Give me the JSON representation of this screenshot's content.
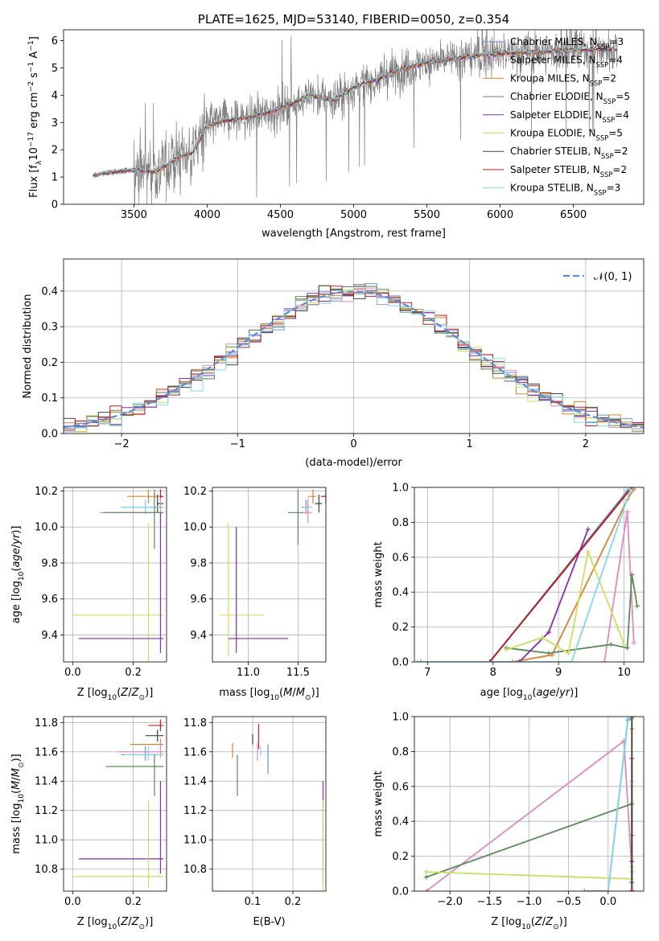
{
  "chart_data": [
    {
      "id": "spectrum",
      "type": "line",
      "title": "PLATE=1625, MJD=53140, FIBERID=0050, z=0.354",
      "xlabel": "wavelength [Angstrom, rest frame]",
      "ylabel": "Flux [f_λ 10^-17 erg cm^-2 s^-1 A^-1]",
      "xlim": [
        3020,
        6980
      ],
      "ylim": [
        0,
        6.4
      ],
      "xticks": [
        3500,
        4000,
        4500,
        5000,
        5500,
        6000,
        6500
      ],
      "yticks": [
        0,
        1,
        2,
        3,
        4,
        5,
        6
      ],
      "grid": false,
      "legend_placement": "top-right",
      "data_range": [
        3220,
        6800
      ],
      "continuum": {
        "x": [
          3220,
          3300,
          3400,
          3500,
          3650,
          3800,
          3900,
          4000,
          4100,
          4300,
          4500,
          4700,
          4861,
          5000,
          5175,
          5300,
          5500,
          5700,
          5900,
          6100,
          6300,
          6500,
          6800
        ],
        "y": [
          1.05,
          1.15,
          1.2,
          1.25,
          1.2,
          1.7,
          1.9,
          2.85,
          3.05,
          3.2,
          3.5,
          4.0,
          3.8,
          4.3,
          4.6,
          4.9,
          5.2,
          5.35,
          5.5,
          5.55,
          5.6,
          5.65,
          5.7
        ]
      },
      "series": [
        {
          "label": "Chabrier MILES, N",
          "sub": "SSP",
          "n": "=3",
          "color": "#6b8fd6"
        },
        {
          "label": "Salpeter MILES, N",
          "sub": "SSP",
          "n": "=4",
          "color": "#e08ac0"
        },
        {
          "label": "Kroupa MILES, N",
          "sub": "SSP",
          "n": "=2",
          "color": "#e08030"
        },
        {
          "label": "Chabrier ELODIE, N",
          "sub": "SSP",
          "n": "=5",
          "color": "#5a8a5a"
        },
        {
          "label": "Salpeter ELODIE, N",
          "sub": "SSP",
          "n": "=4",
          "color": "#8a2ab0"
        },
        {
          "label": "Kroupa ELODIE, N",
          "sub": "SSP",
          "n": "=5",
          "color": "#c8e060"
        },
        {
          "label": "Chabrier STELIB, N",
          "sub": "SSP",
          "n": "=2",
          "color": "#404040"
        },
        {
          "label": "Salpeter STELIB, N",
          "sub": "SSP",
          "n": "=2",
          "color": "#c02020"
        },
        {
          "label": "Kroupa STELIB, N",
          "sub": "SSP",
          "n": "=3",
          "color": "#80d8e8"
        }
      ],
      "data_color": "#808080"
    },
    {
      "id": "residuals",
      "type": "line",
      "xlabel": "(data-model)/error",
      "ylabel": "Normed distribution",
      "xlim": [
        -2.5,
        2.5
      ],
      "ylim": [
        0,
        0.49
      ],
      "xticks": [
        -2,
        -1,
        0,
        1,
        2
      ],
      "yticks": [
        0.0,
        0.1,
        0.2,
        0.3,
        0.4
      ],
      "grid": true,
      "legend": "𝒩(0, 1)",
      "legend_placement": "top-right",
      "gaussian_color": "#5f8bd6",
      "bin_width": 0.1,
      "series_colors": [
        "#6b8fd6",
        "#e08ac0",
        "#e08030",
        "#5a8a5a",
        "#8a2ab0",
        "#c8e060",
        "#404040",
        "#c02020",
        "#80d8e8"
      ]
    },
    {
      "id": "age-vs-z",
      "type": "scatter",
      "xlabel": "Z [log10(Z/Z⊙)]",
      "ylabel": "age [log10(age/yr)]",
      "xlim": [
        -0.03,
        0.31
      ],
      "ylim": [
        9.25,
        10.22
      ],
      "xticks": [
        0.0,
        0.2
      ],
      "yticks": [
        9.4,
        9.6,
        9.8,
        10.0,
        10.2
      ],
      "grid": true,
      "points": [
        {
          "x": 0.25,
          "y": 10.17,
          "xerr": [
            0.07,
            0.05
          ],
          "yerr": [
            0.04,
            0.04
          ],
          "color": "#e08030"
        },
        {
          "x": 0.29,
          "y": 10.17,
          "xerr": [
            0.0,
            0.01
          ],
          "yerr": [
            0.03,
            0.04
          ],
          "color": "#c02020"
        },
        {
          "x": 0.28,
          "y": 10.13,
          "xerr": [
            0.0,
            0.02
          ],
          "yerr": [
            0.05,
            0.05
          ],
          "color": "#404040"
        },
        {
          "x": 0.24,
          "y": 10.11,
          "xerr": [
            0.08,
            0.06
          ],
          "yerr": [
            0.04,
            0.04
          ],
          "color": "#6b8fd6"
        },
        {
          "x": 0.24,
          "y": 10.11,
          "xerr": [
            0.08,
            0.06
          ],
          "yerr": [
            0.04,
            0.04
          ],
          "color": "#80d8e8"
        },
        {
          "x": 0.29,
          "y": 10.08,
          "xerr": [
            0.2,
            0.01
          ],
          "yerr": [
            0.06,
            0.08
          ],
          "color": "#e08ac0"
        },
        {
          "x": 0.27,
          "y": 10.08,
          "xerr": [
            0.17,
            0.03
          ],
          "yerr": [
            0.2,
            0.13
          ],
          "color": "#5a8a5a"
        },
        {
          "x": 0.25,
          "y": 9.51,
          "xerr": [
            0.25,
            0.05
          ],
          "yerr": [
            0.26,
            0.51
          ],
          "color": "#c8e060"
        },
        {
          "x": 0.29,
          "y": 9.38,
          "xerr": [
            0.27,
            0.01
          ],
          "yerr": [
            0.08,
            0.7
          ],
          "color": "#8a2ab0"
        }
      ]
    },
    {
      "id": "age-vs-mass",
      "type": "scatter",
      "xlabel": "mass [log10(M/M⊙)]",
      "ylabel": "",
      "xlim": [
        10.64,
        11.78
      ],
      "ylim": [
        9.25,
        10.22
      ],
      "xticks": [
        11.0,
        11.5
      ],
      "yticks": [
        9.4,
        9.6,
        9.8,
        10.0,
        10.2
      ],
      "grid": true,
      "points": [
        {
          "x": 11.78,
          "y": 10.17,
          "xerr": [
            0.05,
            0.0
          ],
          "yerr": [
            0.04,
            0.04
          ],
          "color": "#c02020"
        },
        {
          "x": 11.65,
          "y": 10.17,
          "xerr": [
            0.05,
            0.03
          ],
          "yerr": [
            0.04,
            0.04
          ],
          "color": "#e08030"
        },
        {
          "x": 11.71,
          "y": 10.13,
          "xerr": [
            0.04,
            0.03
          ],
          "yerr": [
            0.05,
            0.05
          ],
          "color": "#404040"
        },
        {
          "x": 11.58,
          "y": 10.11,
          "xerr": [
            0.04,
            0.04
          ],
          "yerr": [
            0.04,
            0.04
          ],
          "color": "#6b8fd6"
        },
        {
          "x": 11.6,
          "y": 10.11,
          "xerr": [
            0.04,
            0.04
          ],
          "yerr": [
            0.04,
            0.04
          ],
          "color": "#80d8e8"
        },
        {
          "x": 11.6,
          "y": 10.08,
          "xerr": [
            0.06,
            0.04
          ],
          "yerr": [
            0.06,
            0.08
          ],
          "color": "#e08ac0"
        },
        {
          "x": 11.5,
          "y": 10.08,
          "xerr": [
            0.1,
            0.05
          ],
          "yerr": [
            0.18,
            0.13
          ],
          "color": "#5a8a5a"
        },
        {
          "x": 10.8,
          "y": 9.51,
          "xerr": [
            0.09,
            0.36
          ],
          "yerr": [
            0.23,
            0.51
          ],
          "color": "#c8e060"
        },
        {
          "x": 10.88,
          "y": 9.38,
          "xerr": [
            0.08,
            0.52
          ],
          "yerr": [
            0.08,
            0.62
          ],
          "color": "#8a2ab0"
        }
      ]
    },
    {
      "id": "mass-weight-vs-age",
      "type": "line",
      "xlabel": "age [log10(age/yr)]",
      "ylabel": "mass weight",
      "xlim": [
        6.8,
        10.3
      ],
      "ylim": [
        0,
        1.0
      ],
      "xticks": [
        7,
        8,
        9,
        10
      ],
      "yticks": [
        0.0,
        0.2,
        0.4,
        0.6,
        0.8,
        1.0
      ],
      "grid": true,
      "series": [
        {
          "color": "#6b8fd6",
          "x": [
            6.9,
            7.95,
            10.05,
            10.1
          ],
          "y": [
            0.0,
            0.0,
            0.98,
            0.99
          ]
        },
        {
          "color": "#e08ac0",
          "x": [
            9.7,
            10.05,
            10.15
          ],
          "y": [
            0.0,
            0.86,
            0.11
          ]
        },
        {
          "color": "#e08030",
          "x": [
            7.95,
            8.3,
            8.9,
            10.05,
            10.15
          ],
          "y": [
            0.0,
            0.0,
            0.04,
            0.93,
            0.99
          ]
        },
        {
          "color": "#5a8a5a",
          "x": [
            8.2,
            8.85,
            9.8,
            10.05,
            10.12,
            10.2
          ],
          "y": [
            0.08,
            0.05,
            0.1,
            0.08,
            0.5,
            0.32
          ]
        },
        {
          "color": "#8a2ab0",
          "x": [
            7.95,
            8.4,
            8.85,
            9.45
          ],
          "y": [
            0.0,
            0.0,
            0.17,
            0.76
          ]
        },
        {
          "color": "#c8e060",
          "x": [
            8.2,
            8.75,
            9.15,
            9.45,
            9.9,
            10.0
          ],
          "y": [
            0.07,
            0.14,
            0.05,
            0.63,
            0.2,
            0.1
          ]
        },
        {
          "color": "#404040",
          "x": [
            7.95,
            10.12
          ],
          "y": [
            0.0,
            1.0
          ]
        },
        {
          "color": "#c02020",
          "x": [
            7.95,
            10.12
          ],
          "y": [
            0.0,
            1.0
          ]
        },
        {
          "color": "#80d8e8",
          "x": [
            6.85,
            9.2,
            10.1
          ],
          "y": [
            0.0,
            0.0,
            0.99
          ]
        }
      ]
    },
    {
      "id": "mass-vs-z",
      "type": "scatter",
      "xlabel": "Z [log10(Z/Z⊙)]",
      "ylabel": "mass [log10(M/M⊙)]",
      "xlim": [
        -0.03,
        0.31
      ],
      "ylim": [
        10.65,
        11.84
      ],
      "xticks": [
        0.0,
        0.2
      ],
      "yticks": [
        10.8,
        11.0,
        11.2,
        11.4,
        11.6,
        11.8
      ],
      "grid": true,
      "points": [
        {
          "x": 0.29,
          "y": 11.78,
          "xerr": [
            0.04,
            0.01
          ],
          "yerr": [
            0.04,
            0.04
          ],
          "color": "#c02020"
        },
        {
          "x": 0.28,
          "y": 11.71,
          "xerr": [
            0.04,
            0.02
          ],
          "yerr": [
            0.04,
            0.04
          ],
          "color": "#404040"
        },
        {
          "x": 0.29,
          "y": 11.65,
          "xerr": [
            0.1,
            0.01
          ],
          "yerr": [
            0.04,
            0.04
          ],
          "color": "#e08030"
        },
        {
          "x": 0.29,
          "y": 11.6,
          "xerr": [
            0.14,
            0.01
          ],
          "yerr": [
            0.04,
            0.06
          ],
          "color": "#e08ac0"
        },
        {
          "x": 0.24,
          "y": 11.58,
          "xerr": [
            0.08,
            0.06
          ],
          "yerr": [
            0.04,
            0.06
          ],
          "color": "#6b8fd6"
        },
        {
          "x": 0.25,
          "y": 11.58,
          "xerr": [
            0.08,
            0.05
          ],
          "yerr": [
            0.04,
            0.06
          ],
          "color": "#80d8e8"
        },
        {
          "x": 0.27,
          "y": 11.5,
          "xerr": [
            0.16,
            0.03
          ],
          "yerr": [
            0.2,
            0.08
          ],
          "color": "#5a8a5a"
        },
        {
          "x": 0.29,
          "y": 10.87,
          "xerr": [
            0.27,
            0.01
          ],
          "yerr": [
            0.1,
            0.53
          ],
          "color": "#8a2ab0"
        },
        {
          "x": 0.25,
          "y": 10.75,
          "xerr": [
            0.25,
            0.05
          ],
          "yerr": [
            0.08,
            0.52
          ],
          "color": "#c8e060"
        }
      ]
    },
    {
      "id": "mass-vs-ebv",
      "type": "scatter",
      "xlabel": "E(B-V)",
      "ylabel": "",
      "xlim": [
        0.0,
        0.282
      ],
      "ylim": [
        10.65,
        11.84
      ],
      "xticks": [
        0.1,
        0.2
      ],
      "yticks": [
        10.8,
        11.0,
        11.2,
        11.4,
        11.6,
        11.8
      ],
      "grid": true,
      "points": [
        {
          "x": 0.115,
          "y": 11.7,
          "xerr": [
            0.0,
            0.0
          ],
          "yerr": [
            0.08,
            0.09
          ],
          "color": "#c02020"
        },
        {
          "x": 0.1,
          "y": 11.68,
          "xerr": [
            0.0,
            0.0
          ],
          "yerr": [
            0.03,
            0.04
          ],
          "color": "#404040"
        },
        {
          "x": 0.05,
          "y": 11.6,
          "xerr": [
            0.0,
            0.0
          ],
          "yerr": [
            0.04,
            0.06
          ],
          "color": "#e08030"
        },
        {
          "x": 0.112,
          "y": 11.6,
          "xerr": [
            0.0,
            0.0
          ],
          "yerr": [
            0.06,
            0.06
          ],
          "color": "#e08ac0"
        },
        {
          "x": 0.138,
          "y": 11.55,
          "xerr": [
            0.0,
            0.0
          ],
          "yerr": [
            0.1,
            0.1
          ],
          "color": "#6b8fd6"
        },
        {
          "x": 0.12,
          "y": 11.6,
          "xerr": [
            0.0,
            0.0
          ],
          "yerr": [
            0.03,
            0.04
          ],
          "color": "#80d8e8"
        },
        {
          "x": 0.062,
          "y": 11.5,
          "xerr": [
            0.0,
            0.0
          ],
          "yerr": [
            0.2,
            0.08
          ],
          "color": "#5a8a5a"
        },
        {
          "x": 0.275,
          "y": 11.25,
          "xerr": [
            0.0,
            0.0
          ],
          "yerr": [
            0.55,
            0.15
          ],
          "color": "#8a2ab0"
        },
        {
          "x": 0.275,
          "y": 10.9,
          "xerr": [
            0.0,
            0.0
          ],
          "yerr": [
            0.25,
            0.37
          ],
          "color": "#c8e060"
        }
      ]
    },
    {
      "id": "mass-weight-vs-z",
      "type": "line",
      "xlabel": "Z [log10(Z/Z⊙)]",
      "ylabel": "mass weight",
      "xlim": [
        -2.45,
        0.45
      ],
      "ylim": [
        0,
        1.0
      ],
      "xticks": [
        -2.0,
        -1.5,
        -1.0,
        -0.5,
        0.0
      ],
      "yticks": [
        0.0,
        0.2,
        0.4,
        0.6,
        0.8,
        1.0
      ],
      "grid": true,
      "series": [
        {
          "color": "#e08ac0",
          "x": [
            -2.3,
            0.2,
            0.3,
            0.3
          ],
          "y": [
            0.0,
            0.86,
            0.11,
            0.0
          ]
        },
        {
          "color": "#5a8a5a",
          "x": [
            -2.3,
            0.3,
            0.3,
            0.3
          ],
          "y": [
            0.08,
            0.5,
            0.32,
            0.05
          ]
        },
        {
          "color": "#c8e060",
          "x": [
            -2.3,
            0.3,
            0.3,
            0.3,
            0.3
          ],
          "y": [
            0.11,
            0.07,
            0.63,
            0.2,
            0.14
          ]
        },
        {
          "color": "#8a2ab0",
          "x": [
            0.3,
            0.3,
            0.3,
            0.3
          ],
          "y": [
            0.0,
            0.17,
            0.76,
            0.0
          ]
        },
        {
          "color": "#6b8fd6",
          "x": [
            -0.3,
            0.0,
            0.25,
            0.3
          ],
          "y": [
            0.0,
            0.0,
            0.98,
            0.99
          ]
        },
        {
          "color": "#80d8e8",
          "x": [
            0.0,
            0.25,
            0.3
          ],
          "y": [
            0.0,
            0.99,
            0.99
          ]
        },
        {
          "color": "#e08030",
          "x": [
            0.3,
            0.3,
            0.3
          ],
          "y": [
            0.0,
            0.93,
            0.99
          ]
        },
        {
          "color": "#404040",
          "x": [
            0.3,
            0.3
          ],
          "y": [
            0.0,
            1.0
          ]
        },
        {
          "color": "#c02020",
          "x": [
            0.3,
            0.3
          ],
          "y": [
            0.0,
            0.0
          ]
        }
      ]
    }
  ]
}
